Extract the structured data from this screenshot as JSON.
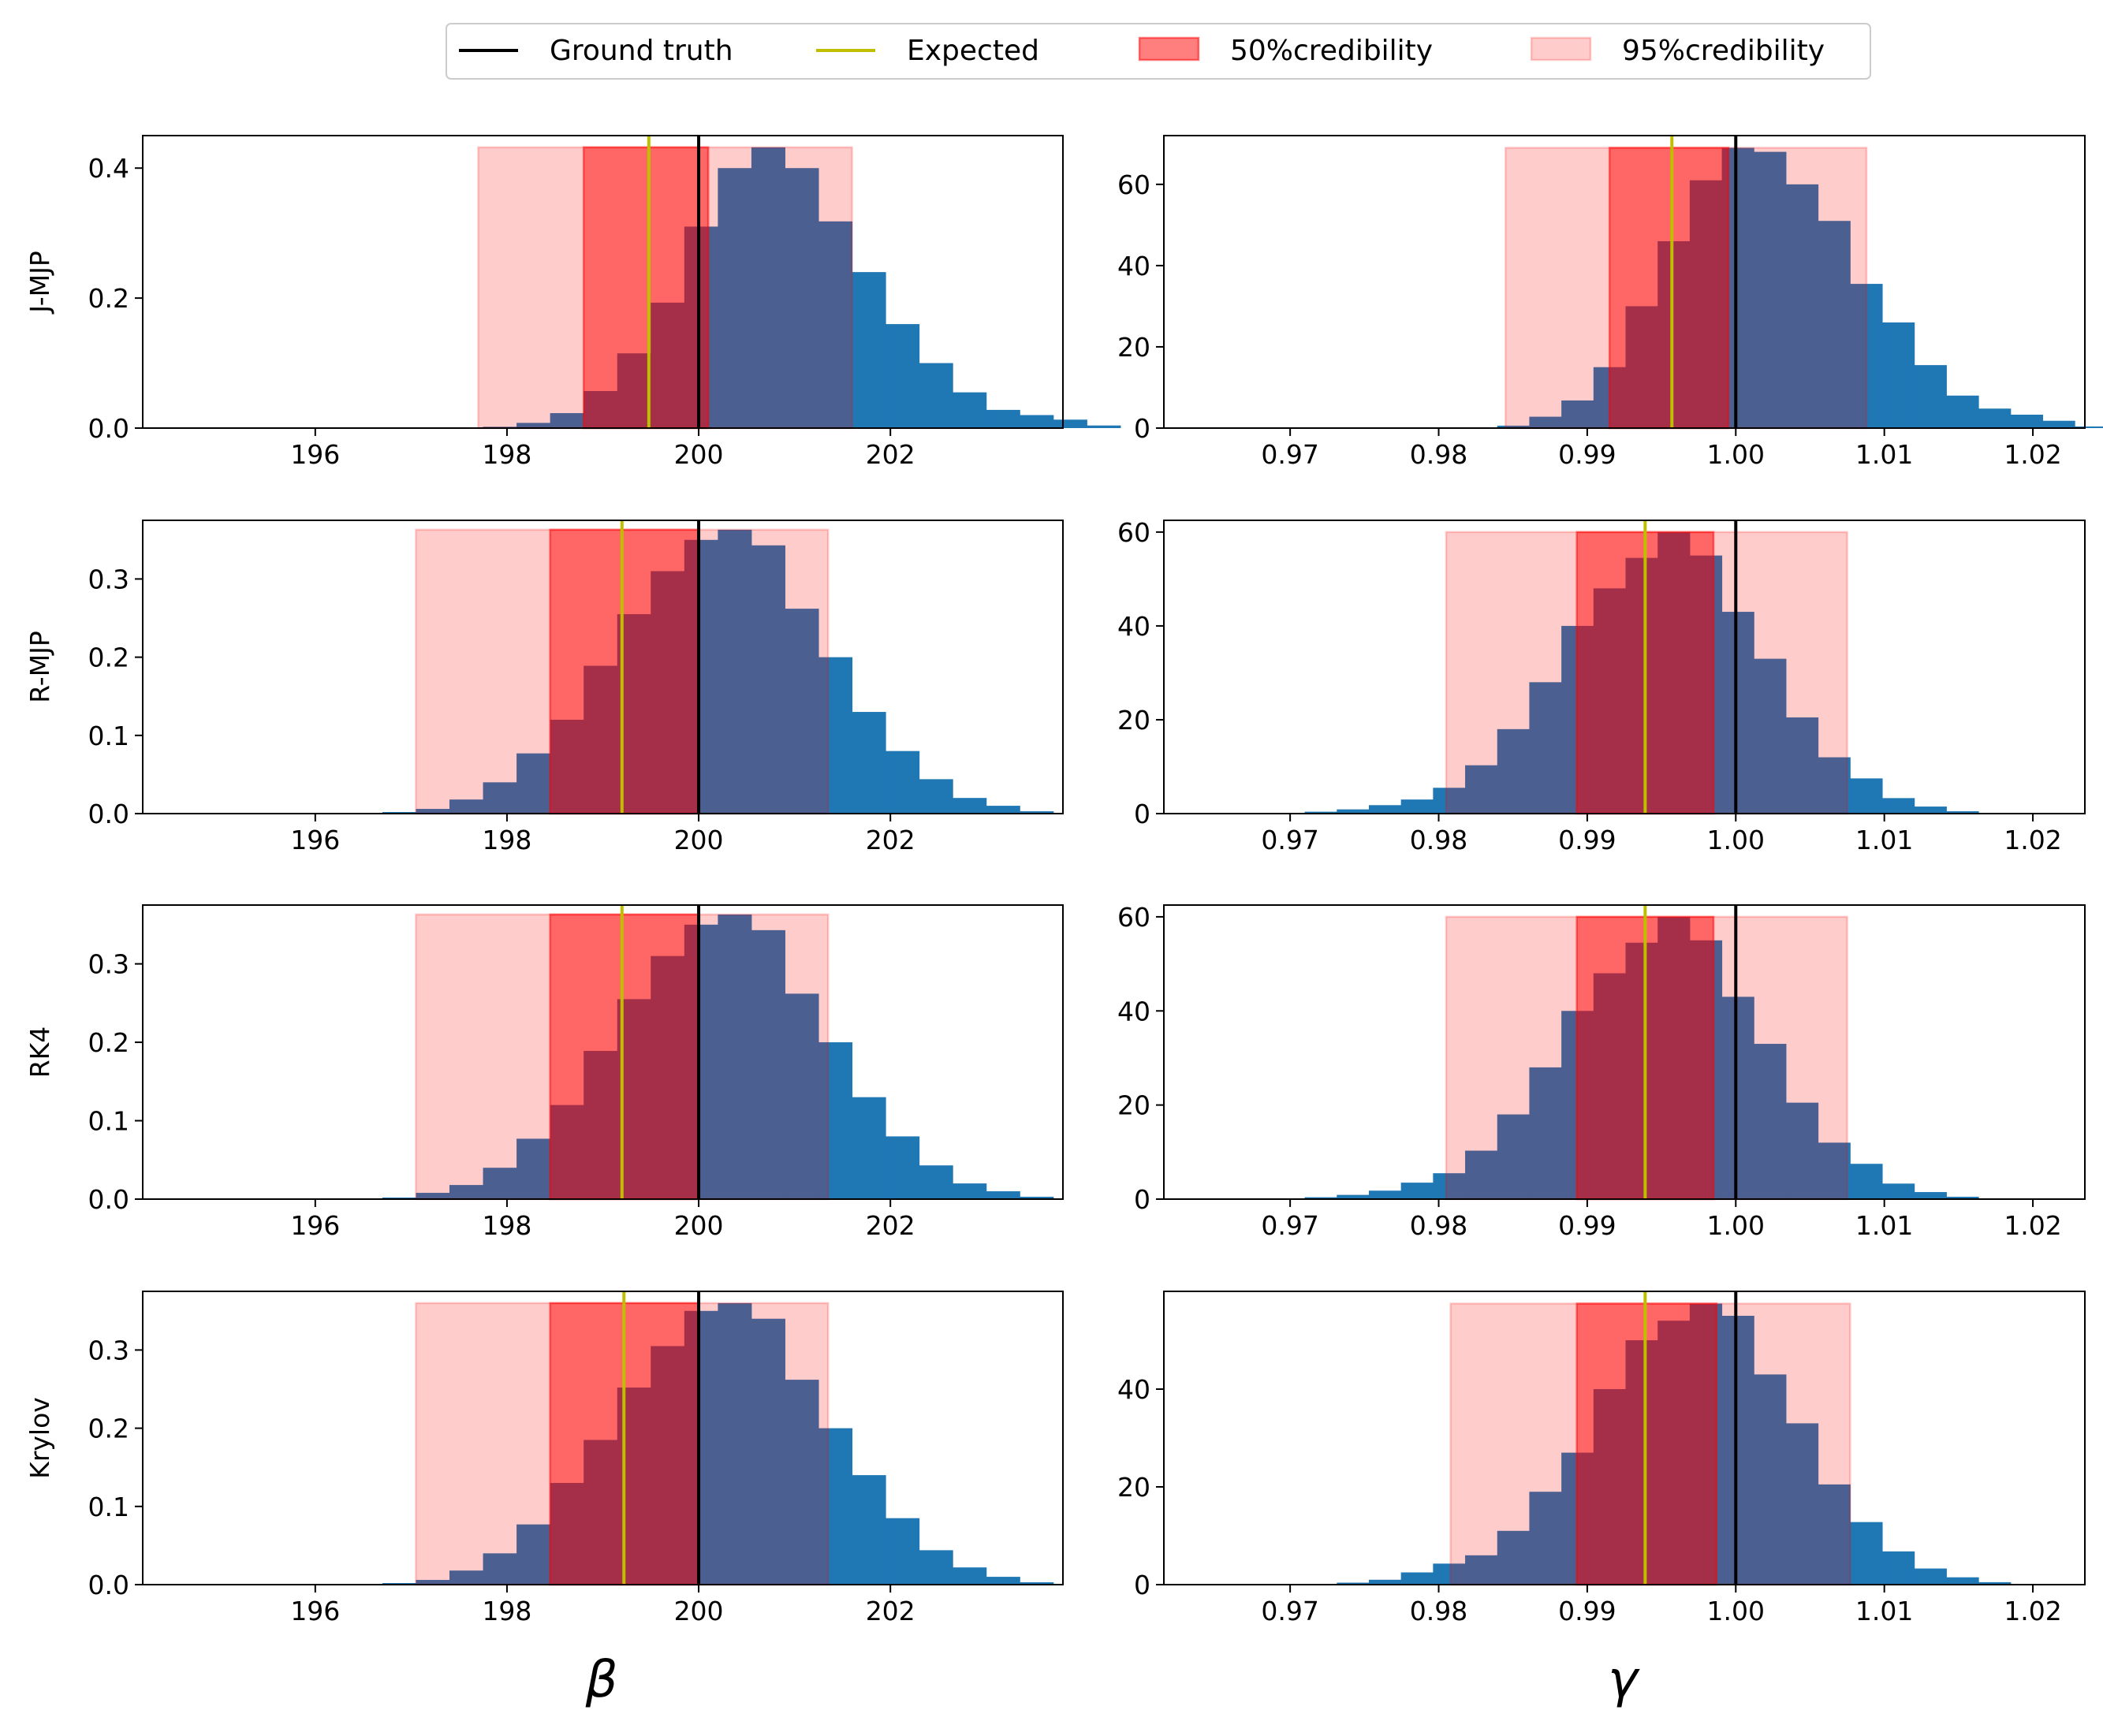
{
  "legend": {
    "items": [
      {
        "label": "Ground truth",
        "kind": "line",
        "color": "#000000"
      },
      {
        "label": "Expected",
        "kind": "line",
        "color": "#bfbf00"
      },
      {
        "label": "50%credibility",
        "kind": "patch",
        "color": "#ff0000",
        "alpha": 0.5
      },
      {
        "label": "95%credibility",
        "kind": "patch",
        "color": "#ff0000",
        "alpha": 0.2
      }
    ],
    "placement": "top-center"
  },
  "colors": {
    "hist": "#1f77b4",
    "truth": "#000000",
    "expected": "#bfbf00",
    "interval": "#ff0000"
  },
  "columns": [
    {
      "param": "β",
      "xlim": [
        194.2,
        203.8
      ],
      "ticks": [
        196,
        198,
        200,
        202
      ],
      "tick_labels": [
        "196",
        "198",
        "200",
        "202"
      ]
    },
    {
      "param": "γ",
      "xlim": [
        0.9615,
        1.0235
      ],
      "ticks": [
        0.97,
        0.98,
        0.99,
        1.0,
        1.01,
        1.02
      ],
      "tick_labels": [
        "0.97",
        "0.98",
        "0.99",
        "1.00",
        "1.01",
        "1.02"
      ]
    }
  ],
  "rows": [
    "J-MJP",
    "R-MJP",
    "RK4",
    "Krylov"
  ],
  "chart_data": [
    {
      "type": "bar",
      "method": "J-MJP",
      "param": "β",
      "truth": 200,
      "expected": 199.48,
      "ci50": [
        198.8,
        200.1
      ],
      "ci95": [
        197.7,
        201.6
      ],
      "ylim": [
        0,
        0.45
      ],
      "yticks": [
        0.0,
        0.2,
        0.4
      ],
      "ytick_labels": [
        "0.0",
        "0.2",
        "0.4"
      ],
      "bin_start": 194.6,
      "bin_width": 0.35,
      "values": [
        0,
        0,
        0,
        0,
        0,
        0,
        0,
        0,
        0,
        0.002,
        0.008,
        0.023,
        0.057,
        0.115,
        0.193,
        0.31,
        0.4,
        0.432,
        0.4,
        0.318,
        0.24,
        0.16,
        0.1,
        0.055,
        0.028,
        0.02,
        0.013,
        0.004
      ]
    },
    {
      "type": "bar",
      "method": "J-MJP",
      "param": "γ",
      "truth": 1.0,
      "expected": 0.9957,
      "ci50": [
        0.9915,
        0.9995
      ],
      "ci95": [
        0.9845,
        1.0088
      ],
      "ylim": [
        0,
        72
      ],
      "yticks": [
        0,
        20,
        40,
        60
      ],
      "ytick_labels": [
        "0",
        "20",
        "40",
        "60"
      ],
      "bin_start": 0.9645,
      "bin_width": 0.00216,
      "values": [
        0,
        0,
        0,
        0,
        0,
        0,
        0,
        0,
        0.2,
        0.6,
        2.8,
        6.8,
        15,
        30,
        46,
        61,
        69,
        68,
        60,
        51,
        35.5,
        26,
        15.5,
        8,
        4.8,
        3.3,
        1.8,
        0.4,
        0.1
      ]
    },
    {
      "type": "bar",
      "method": "R-MJP",
      "param": "β",
      "truth": 200,
      "expected": 199.2,
      "ci50": [
        198.45,
        200.0
      ],
      "ci95": [
        197.05,
        201.35
      ],
      "ylim": [
        0,
        0.375
      ],
      "yticks": [
        0.0,
        0.1,
        0.2,
        0.3
      ],
      "ytick_labels": [
        "0.0",
        "0.1",
        "0.2",
        "0.3"
      ],
      "bin_start": 194.6,
      "bin_width": 0.35,
      "values": [
        0,
        0,
        0,
        0,
        0,
        0,
        0.002,
        0.006,
        0.018,
        0.04,
        0.077,
        0.12,
        0.189,
        0.255,
        0.31,
        0.35,
        0.363,
        0.343,
        0.262,
        0.2,
        0.13,
        0.08,
        0.044,
        0.02,
        0.01,
        0.003,
        0,
        0
      ]
    },
    {
      "type": "bar",
      "method": "R-MJP",
      "param": "γ",
      "truth": 1.0,
      "expected": 0.9939,
      "ci50": [
        0.9893,
        0.9985
      ],
      "ci95": [
        0.9805,
        1.0075
      ],
      "ylim": [
        0,
        62.5
      ],
      "yticks": [
        0,
        20,
        40,
        60
      ],
      "ytick_labels": [
        "0",
        "20",
        "40",
        "60"
      ],
      "bin_start": 0.9645,
      "bin_width": 0.00216,
      "values": [
        0,
        0,
        0,
        0.4,
        0.9,
        1.8,
        3,
        5.5,
        10.3,
        18,
        28,
        40,
        48,
        54.5,
        60,
        55,
        43,
        33,
        20.5,
        12,
        7.5,
        3.3,
        1.5,
        0.5,
        0.1,
        0,
        0,
        0,
        0
      ]
    },
    {
      "type": "bar",
      "method": "RK4",
      "param": "β",
      "truth": 200,
      "expected": 199.2,
      "ci50": [
        198.45,
        200.0
      ],
      "ci95": [
        197.05,
        201.35
      ],
      "ylim": [
        0,
        0.375
      ],
      "yticks": [
        0.0,
        0.1,
        0.2,
        0.3
      ],
      "ytick_labels": [
        "0.0",
        "0.1",
        "0.2",
        "0.3"
      ],
      "bin_start": 194.6,
      "bin_width": 0.35,
      "values": [
        0,
        0,
        0,
        0,
        0,
        0,
        0.002,
        0.008,
        0.018,
        0.04,
        0.077,
        0.12,
        0.189,
        0.255,
        0.31,
        0.35,
        0.363,
        0.343,
        0.262,
        0.2,
        0.13,
        0.08,
        0.043,
        0.02,
        0.01,
        0.003,
        0,
        0
      ]
    },
    {
      "type": "bar",
      "method": "RK4",
      "param": "γ",
      "truth": 1.0,
      "expected": 0.9939,
      "ci50": [
        0.9893,
        0.9985
      ],
      "ci95": [
        0.9805,
        1.0075
      ],
      "ylim": [
        0,
        62.5
      ],
      "yticks": [
        0,
        20,
        40,
        60
      ],
      "ytick_labels": [
        "0",
        "20",
        "40",
        "60"
      ],
      "bin_start": 0.9645,
      "bin_width": 0.00216,
      "values": [
        0,
        0,
        0,
        0.4,
        0.9,
        1.8,
        3.5,
        5.5,
        10.3,
        18,
        28,
        40,
        48,
        54.5,
        60,
        55,
        43,
        33,
        20.5,
        12,
        7.5,
        3.3,
        1.5,
        0.5,
        0.1,
        0,
        0,
        0,
        0
      ]
    },
    {
      "type": "bar",
      "method": "Krylov",
      "param": "β",
      "truth": 200,
      "expected": 199.22,
      "ci50": [
        198.45,
        200.0
      ],
      "ci95": [
        197.05,
        201.35
      ],
      "ylim": [
        0,
        0.375
      ],
      "yticks": [
        0.0,
        0.1,
        0.2,
        0.3
      ],
      "ytick_labels": [
        "0.0",
        "0.1",
        "0.2",
        "0.3"
      ],
      "bin_start": 194.6,
      "bin_width": 0.35,
      "values": [
        0,
        0,
        0,
        0,
        0,
        0,
        0.002,
        0.006,
        0.018,
        0.04,
        0.077,
        0.13,
        0.185,
        0.252,
        0.305,
        0.35,
        0.36,
        0.34,
        0.262,
        0.2,
        0.14,
        0.085,
        0.044,
        0.022,
        0.01,
        0.003,
        0,
        0
      ]
    },
    {
      "type": "bar",
      "method": "Krylov",
      "param": "γ",
      "truth": 1.0,
      "expected": 0.9939,
      "ci50": [
        0.9893,
        0.9987
      ],
      "ci95": [
        0.9808,
        1.0077
      ],
      "ylim": [
        0,
        60
      ],
      "yticks": [
        0,
        20,
        40
      ],
      "ytick_labels": [
        "0",
        "20",
        "40"
      ],
      "bin_start": 0.9645,
      "bin_width": 0.00216,
      "values": [
        0,
        0,
        0,
        0,
        0.4,
        1,
        2.5,
        4.3,
        6,
        11,
        19,
        27,
        40,
        50,
        54,
        57.5,
        55,
        43,
        33,
        20.5,
        12.8,
        6.8,
        3.3,
        1.5,
        0.5,
        0.1,
        0,
        0,
        0
      ]
    }
  ]
}
